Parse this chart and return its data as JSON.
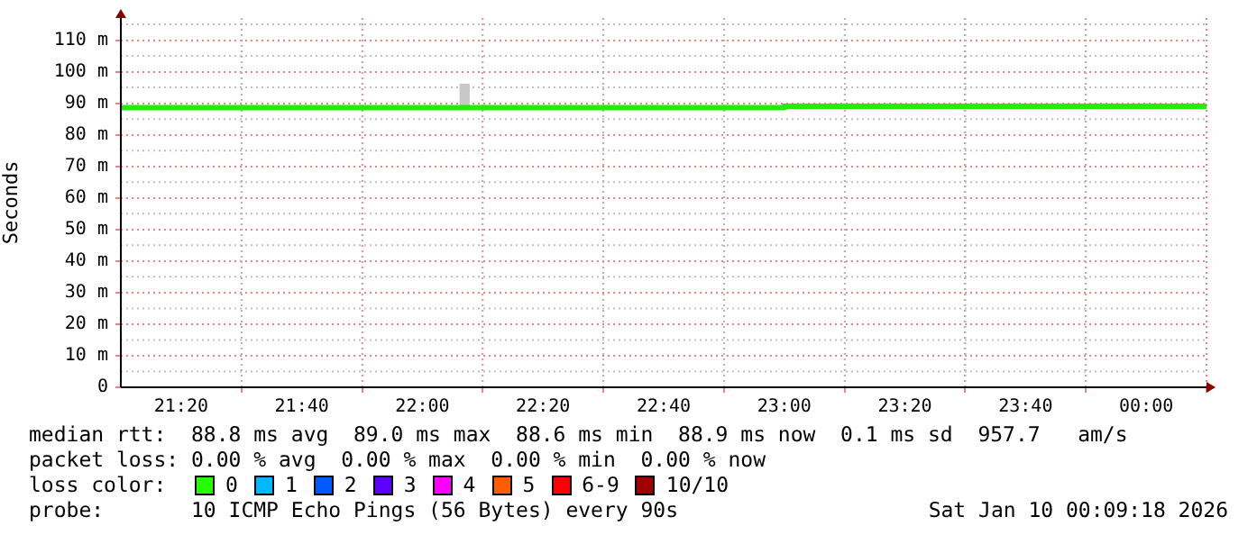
{
  "chart_data": {
    "type": "step",
    "ylabel": "Seconds",
    "x": [
      21.1667,
      21.3333,
      21.5,
      21.6667,
      21.8333,
      22,
      22.1667,
      22.3333,
      22.5,
      22.6667,
      22.8333,
      23,
      23.1667,
      23.3333,
      23.5,
      23.6667,
      23.8333,
      24,
      24.1667
    ],
    "series": [
      {
        "color": "#20f000",
        "values": [
          88.6,
          88.6,
          88.6,
          88.6,
          88.6,
          88.6,
          88.6,
          88.6,
          88.6,
          88.6,
          88.6,
          88.6,
          89,
          89,
          89,
          89,
          89,
          89,
          89
        ]
      },
      {
        "type": "bar",
        "color": "#c8c8c8",
        "x": [
          22.1167
        ],
        "base": [
          89.3
        ],
        "values": [
          6.7
        ]
      }
    ],
    "xlim": [
      21.1667,
      24.1667
    ],
    "xticks": [
      {
        "value": 21.3333,
        "label": "21:20"
      },
      {
        "value": 21.6667,
        "label": "21:40"
      },
      {
        "value": 22,
        "label": "22:00"
      },
      {
        "value": 22.3333,
        "label": "22:20"
      },
      {
        "value": 22.6667,
        "label": "22:40"
      },
      {
        "value": 23,
        "label": "23:00"
      },
      {
        "value": 23.3333,
        "label": "23:20"
      },
      {
        "value": 23.6667,
        "label": "23:40"
      },
      {
        "value": 24,
        "label": "00:00"
      }
    ],
    "ylim": [
      0,
      117
    ],
    "yticks": [
      0,
      {
        "value": 10,
        "label": "10 m"
      },
      {
        "value": 20,
        "label": "20 m"
      },
      {
        "value": 30,
        "label": "30 m"
      },
      {
        "value": 40,
        "label": "40 m"
      },
      {
        "value": 50,
        "label": "50 m"
      },
      {
        "value": 60,
        "label": "60 m"
      },
      {
        "value": 70,
        "label": "70 m"
      },
      {
        "value": 80,
        "label": "80 m"
      },
      {
        "value": 90,
        "label": "90 m"
      },
      {
        "value": 100,
        "label": "100 m"
      },
      {
        "value": 110,
        "label": "110 m"
      }
    ],
    "grid": true,
    "annotations": [
      "median rtt:  88.8 ms avg  89.0 ms max  88.6 ms min  88.9 ms now  0.1 ms sd  957.7   am/s",
      "packet loss: 0.00 % avg  0.00 % max  0.00 % min  0.00 % now",
      "loss color:",
      "0",
      "1",
      "2",
      "3",
      "4",
      "5",
      "6-9",
      "10/10",
      "probe:       10 ICMP Echo Pings (56 Bytes) every 90s",
      "Sat Jan 10 00:09:18 2026"
    ]
  }
}
